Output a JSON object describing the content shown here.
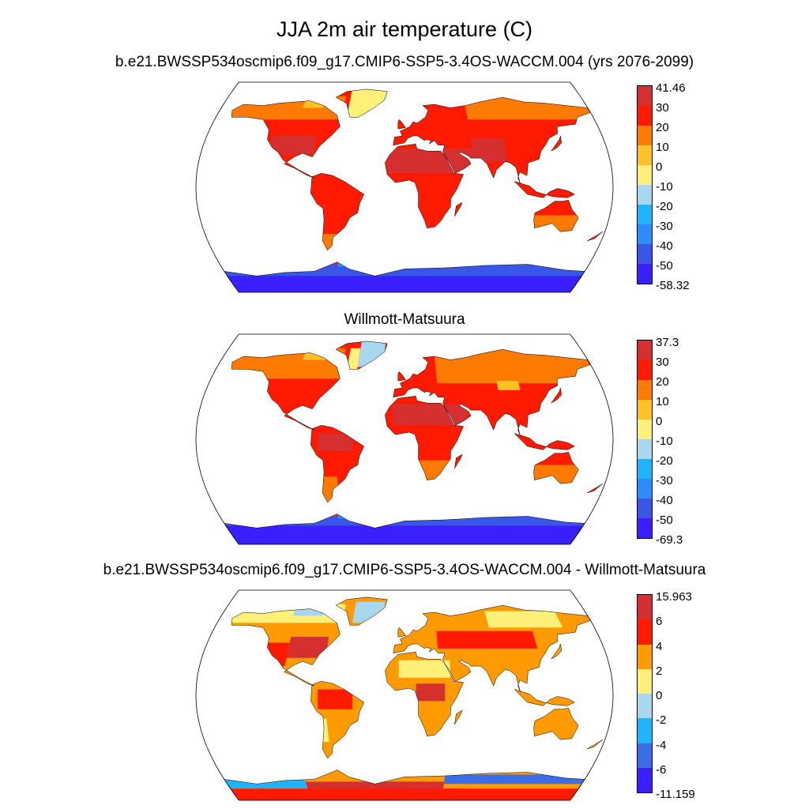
{
  "title": "JJA 2m air temperature (C)",
  "panels": [
    {
      "title": "b.e21.BWSSP534oscmip6.f09_g17.CMIP6-SSP5-3.4OS-WACCM.004 (yrs 2076-2099)",
      "field": "model",
      "colorbar": {
        "labels": [
          "41.46",
          "30",
          "20",
          "10",
          "0",
          "-10",
          "-20",
          "-30",
          "-40",
          "-50",
          "-58.32"
        ],
        "colors": [
          "#d62f2f",
          "#ff1a00",
          "#ff7a00",
          "#ffc125",
          "#fff07a",
          "#a8d8f0",
          "#1fb4ff",
          "#2d8cff",
          "#3a56e8",
          "#3a1fff"
        ]
      }
    },
    {
      "title": "Willmott-Matsuura",
      "field": "obs",
      "colorbar": {
        "labels": [
          "37.3",
          "30",
          "20",
          "10",
          "0",
          "-10",
          "-20",
          "-30",
          "-40",
          "-50",
          "-69.3"
        ],
        "colors": [
          "#d62f2f",
          "#ff1a00",
          "#ff7a00",
          "#ffc125",
          "#fff07a",
          "#a8d8f0",
          "#1fb4ff",
          "#2d8cff",
          "#3a56e8",
          "#3a1fff"
        ]
      }
    },
    {
      "title": "b.e21.BWSSP534oscmip6.f09_g17.CMIP6-SSP5-3.4OS-WACCM.004 - Willmott-Matsuura",
      "field": "diff",
      "colorbar": {
        "labels": [
          "15.963",
          "6",
          "4",
          "2",
          "0",
          "-2",
          "-4",
          "-6",
          "-11.159"
        ],
        "colors": [
          "#d62f2f",
          "#ff1a00",
          "#ff9a00",
          "#fff07a",
          "#a8d8f0",
          "#1fb4ff",
          "#3a6ee8",
          "#3a1fff"
        ]
      }
    }
  ],
  "map": {
    "projection": "Robinson",
    "ocean_color": "#ffffff",
    "coastline_color": "#000000"
  }
}
